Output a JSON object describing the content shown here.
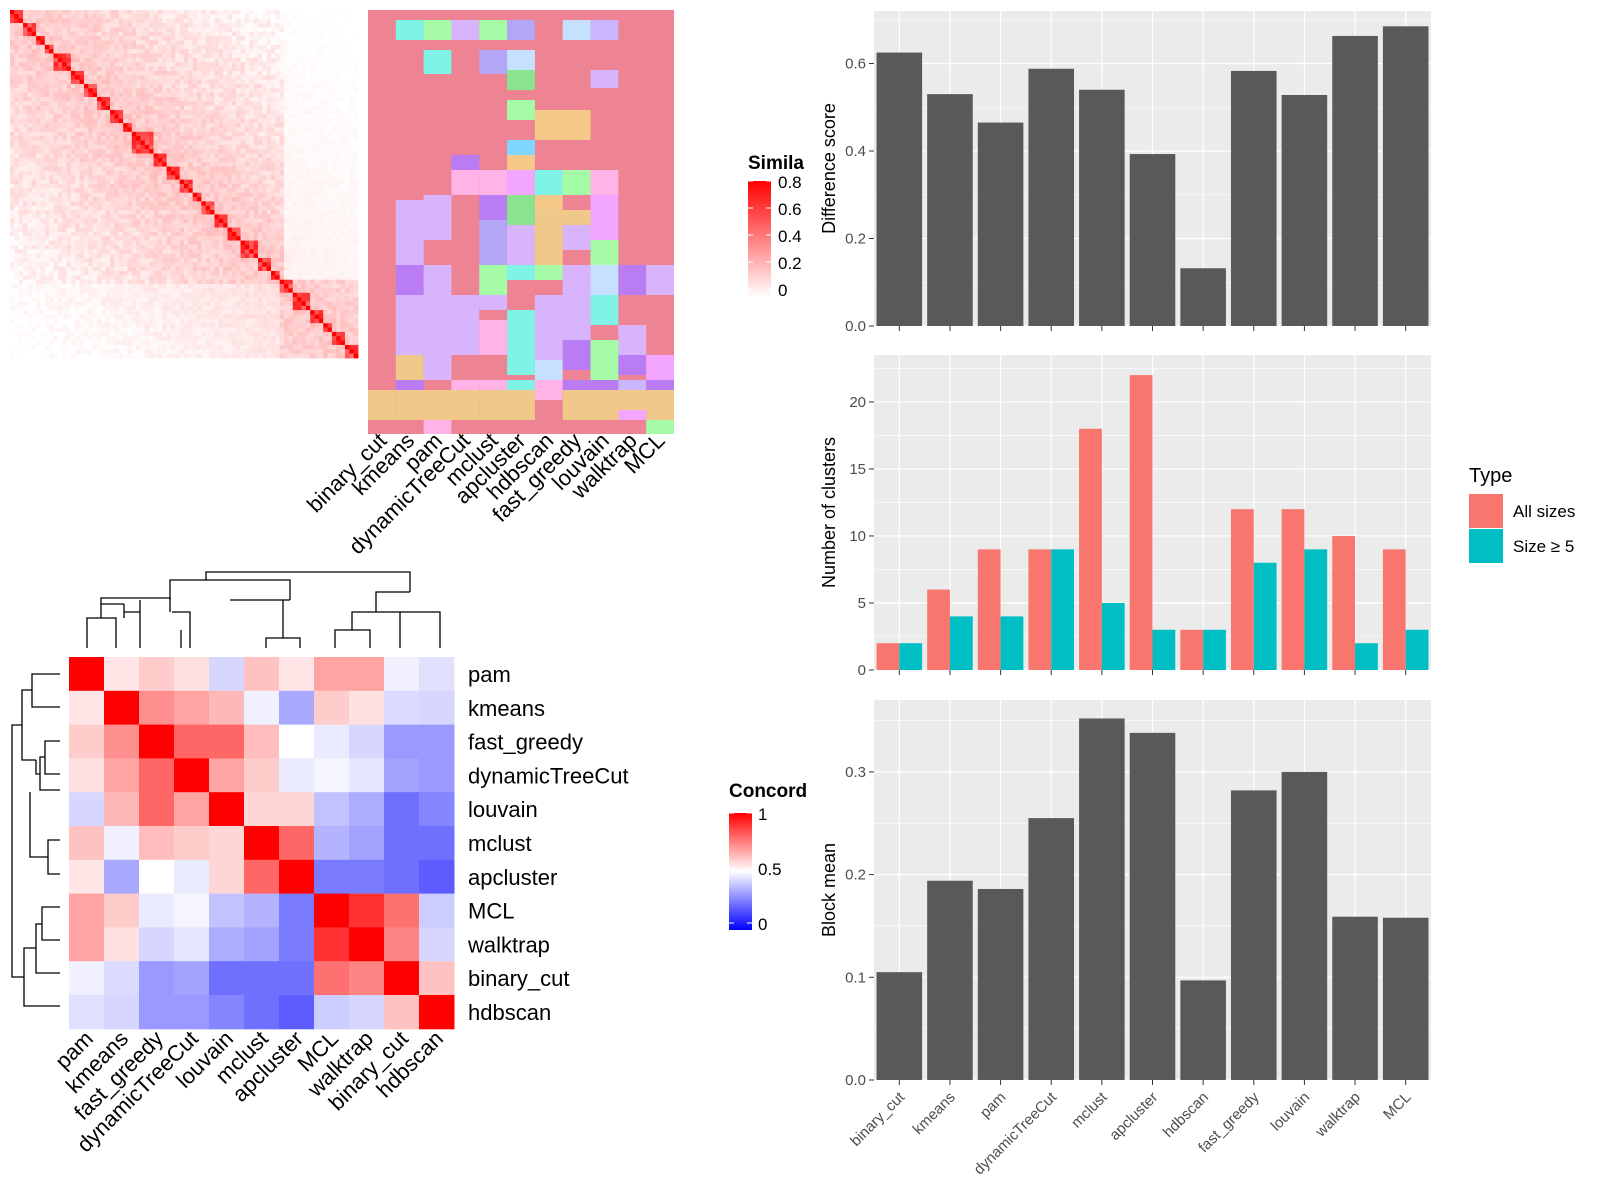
{
  "colors": {
    "panel_bg": "#ebebeb",
    "grid": "#ffffff",
    "bar_dark": "#595959",
    "all_sizes": "#f8766d",
    "size_ge5": "#00bfc4",
    "heat_red": "#ff0000",
    "heat_blue": "#0000ff",
    "membership_default": "#ee8493"
  },
  "similarity_heatmap": {
    "legend_title": "Similarity",
    "legend_title_visible": "Simila",
    "legend_ticks": [
      "0.8",
      "0.6",
      "0.4",
      "0.2",
      "0"
    ]
  },
  "membership_heatmap": {
    "columns": [
      "binary_cut",
      "kmeans",
      "pam",
      "dynamicTreeCut",
      "mclust",
      "apcluster",
      "hdbscan",
      "fast_greedy",
      "louvain",
      "walktrap",
      "MCL"
    ]
  },
  "concordance_heatmap": {
    "legend_title": "Concordance",
    "legend_title_visible": "Concord",
    "legend_ticks": [
      "1",
      "0.5",
      "0"
    ]
  },
  "chart_data": [
    {
      "type": "bar",
      "title": "",
      "xlabel": "",
      "ylabel": "Difference score",
      "categories": [
        "binary_cut",
        "kmeans",
        "pam",
        "dynamicTreeCut",
        "mclust",
        "apcluster",
        "hdbscan",
        "fast_greedy",
        "louvain",
        "walktrap",
        "MCL"
      ],
      "values": [
        0.625,
        0.53,
        0.465,
        0.588,
        0.54,
        0.393,
        0.132,
        0.583,
        0.528,
        0.663,
        0.685
      ],
      "ylim": [
        0,
        0.72
      ],
      "yticks": [
        "0.0",
        "0.2",
        "0.4",
        "0.6"
      ],
      "grid": true
    },
    {
      "type": "bar",
      "title": "",
      "xlabel": "",
      "ylabel": "Number of clusters",
      "categories": [
        "binary_cut",
        "kmeans",
        "pam",
        "dynamicTreeCut",
        "mclust",
        "apcluster",
        "hdbscan",
        "fast_greedy",
        "louvain",
        "walktrap",
        "MCL"
      ],
      "series": [
        {
          "name": "All sizes",
          "values": [
            2,
            6,
            9,
            9,
            18,
            22,
            3,
            12,
            12,
            10,
            9
          ]
        },
        {
          "name": "Size ≥ 5",
          "values": [
            2,
            4,
            4,
            9,
            5,
            3,
            3,
            8,
            9,
            2,
            3
          ]
        }
      ],
      "ylim": [
        0,
        23.5
      ],
      "yticks": [
        "0",
        "5",
        "10",
        "15",
        "20"
      ],
      "legend_title": "Type",
      "legend_position": "right",
      "grid": true
    },
    {
      "type": "bar",
      "title": "",
      "xlabel": "",
      "ylabel": "Block mean",
      "categories": [
        "binary_cut",
        "kmeans",
        "pam",
        "dynamicTreeCut",
        "mclust",
        "apcluster",
        "hdbscan",
        "fast_greedy",
        "louvain",
        "walktrap",
        "MCL"
      ],
      "values": [
        0.105,
        0.194,
        0.186,
        0.255,
        0.352,
        0.338,
        0.097,
        0.282,
        0.3,
        0.159,
        0.158
      ],
      "ylim": [
        0,
        0.37
      ],
      "yticks": [
        "0.0",
        "0.1",
        "0.2",
        "0.3"
      ],
      "grid": true
    },
    {
      "type": "heatmap",
      "title": "",
      "rows": [
        "pam",
        "kmeans",
        "fast_greedy",
        "dynamicTreeCut",
        "louvain",
        "mclust",
        "apcluster",
        "MCL",
        "walktrap",
        "binary_cut",
        "hdbscan"
      ],
      "columns": [
        "pam",
        "kmeans",
        "fast_greedy",
        "dynamicTreeCut",
        "louvain",
        "mclust",
        "apcluster",
        "MCL",
        "walktrap",
        "binary_cut",
        "hdbscan"
      ],
      "values": [
        [
          1.0,
          0.55,
          0.6,
          0.56,
          0.42,
          0.62,
          0.55,
          0.68,
          0.68,
          0.47,
          0.44
        ],
        [
          0.55,
          1.0,
          0.72,
          0.68,
          0.64,
          0.47,
          0.33,
          0.6,
          0.56,
          0.43,
          0.42
        ],
        [
          0.6,
          0.72,
          1.0,
          0.8,
          0.8,
          0.63,
          0.5,
          0.46,
          0.42,
          0.3,
          0.3
        ],
        [
          0.56,
          0.68,
          0.8,
          1.0,
          0.68,
          0.6,
          0.46,
          0.48,
          0.45,
          0.32,
          0.3
        ],
        [
          0.42,
          0.64,
          0.8,
          0.68,
          1.0,
          0.58,
          0.58,
          0.38,
          0.34,
          0.22,
          0.26
        ],
        [
          0.62,
          0.47,
          0.63,
          0.6,
          0.58,
          1.0,
          0.8,
          0.35,
          0.32,
          0.22,
          0.22
        ],
        [
          0.55,
          0.33,
          0.5,
          0.46,
          0.58,
          0.8,
          1.0,
          0.24,
          0.24,
          0.22,
          0.18
        ],
        [
          0.68,
          0.6,
          0.46,
          0.48,
          0.38,
          0.35,
          0.24,
          1.0,
          0.9,
          0.78,
          0.4
        ],
        [
          0.68,
          0.56,
          0.42,
          0.45,
          0.34,
          0.32,
          0.24,
          0.9,
          1.0,
          0.74,
          0.42
        ],
        [
          0.47,
          0.43,
          0.3,
          0.32,
          0.22,
          0.22,
          0.22,
          0.78,
          0.74,
          1.0,
          0.62
        ],
        [
          0.44,
          0.42,
          0.3,
          0.3,
          0.26,
          0.22,
          0.18,
          0.4,
          0.42,
          0.62,
          1.0
        ]
      ],
      "range": [
        0,
        1
      ]
    }
  ]
}
